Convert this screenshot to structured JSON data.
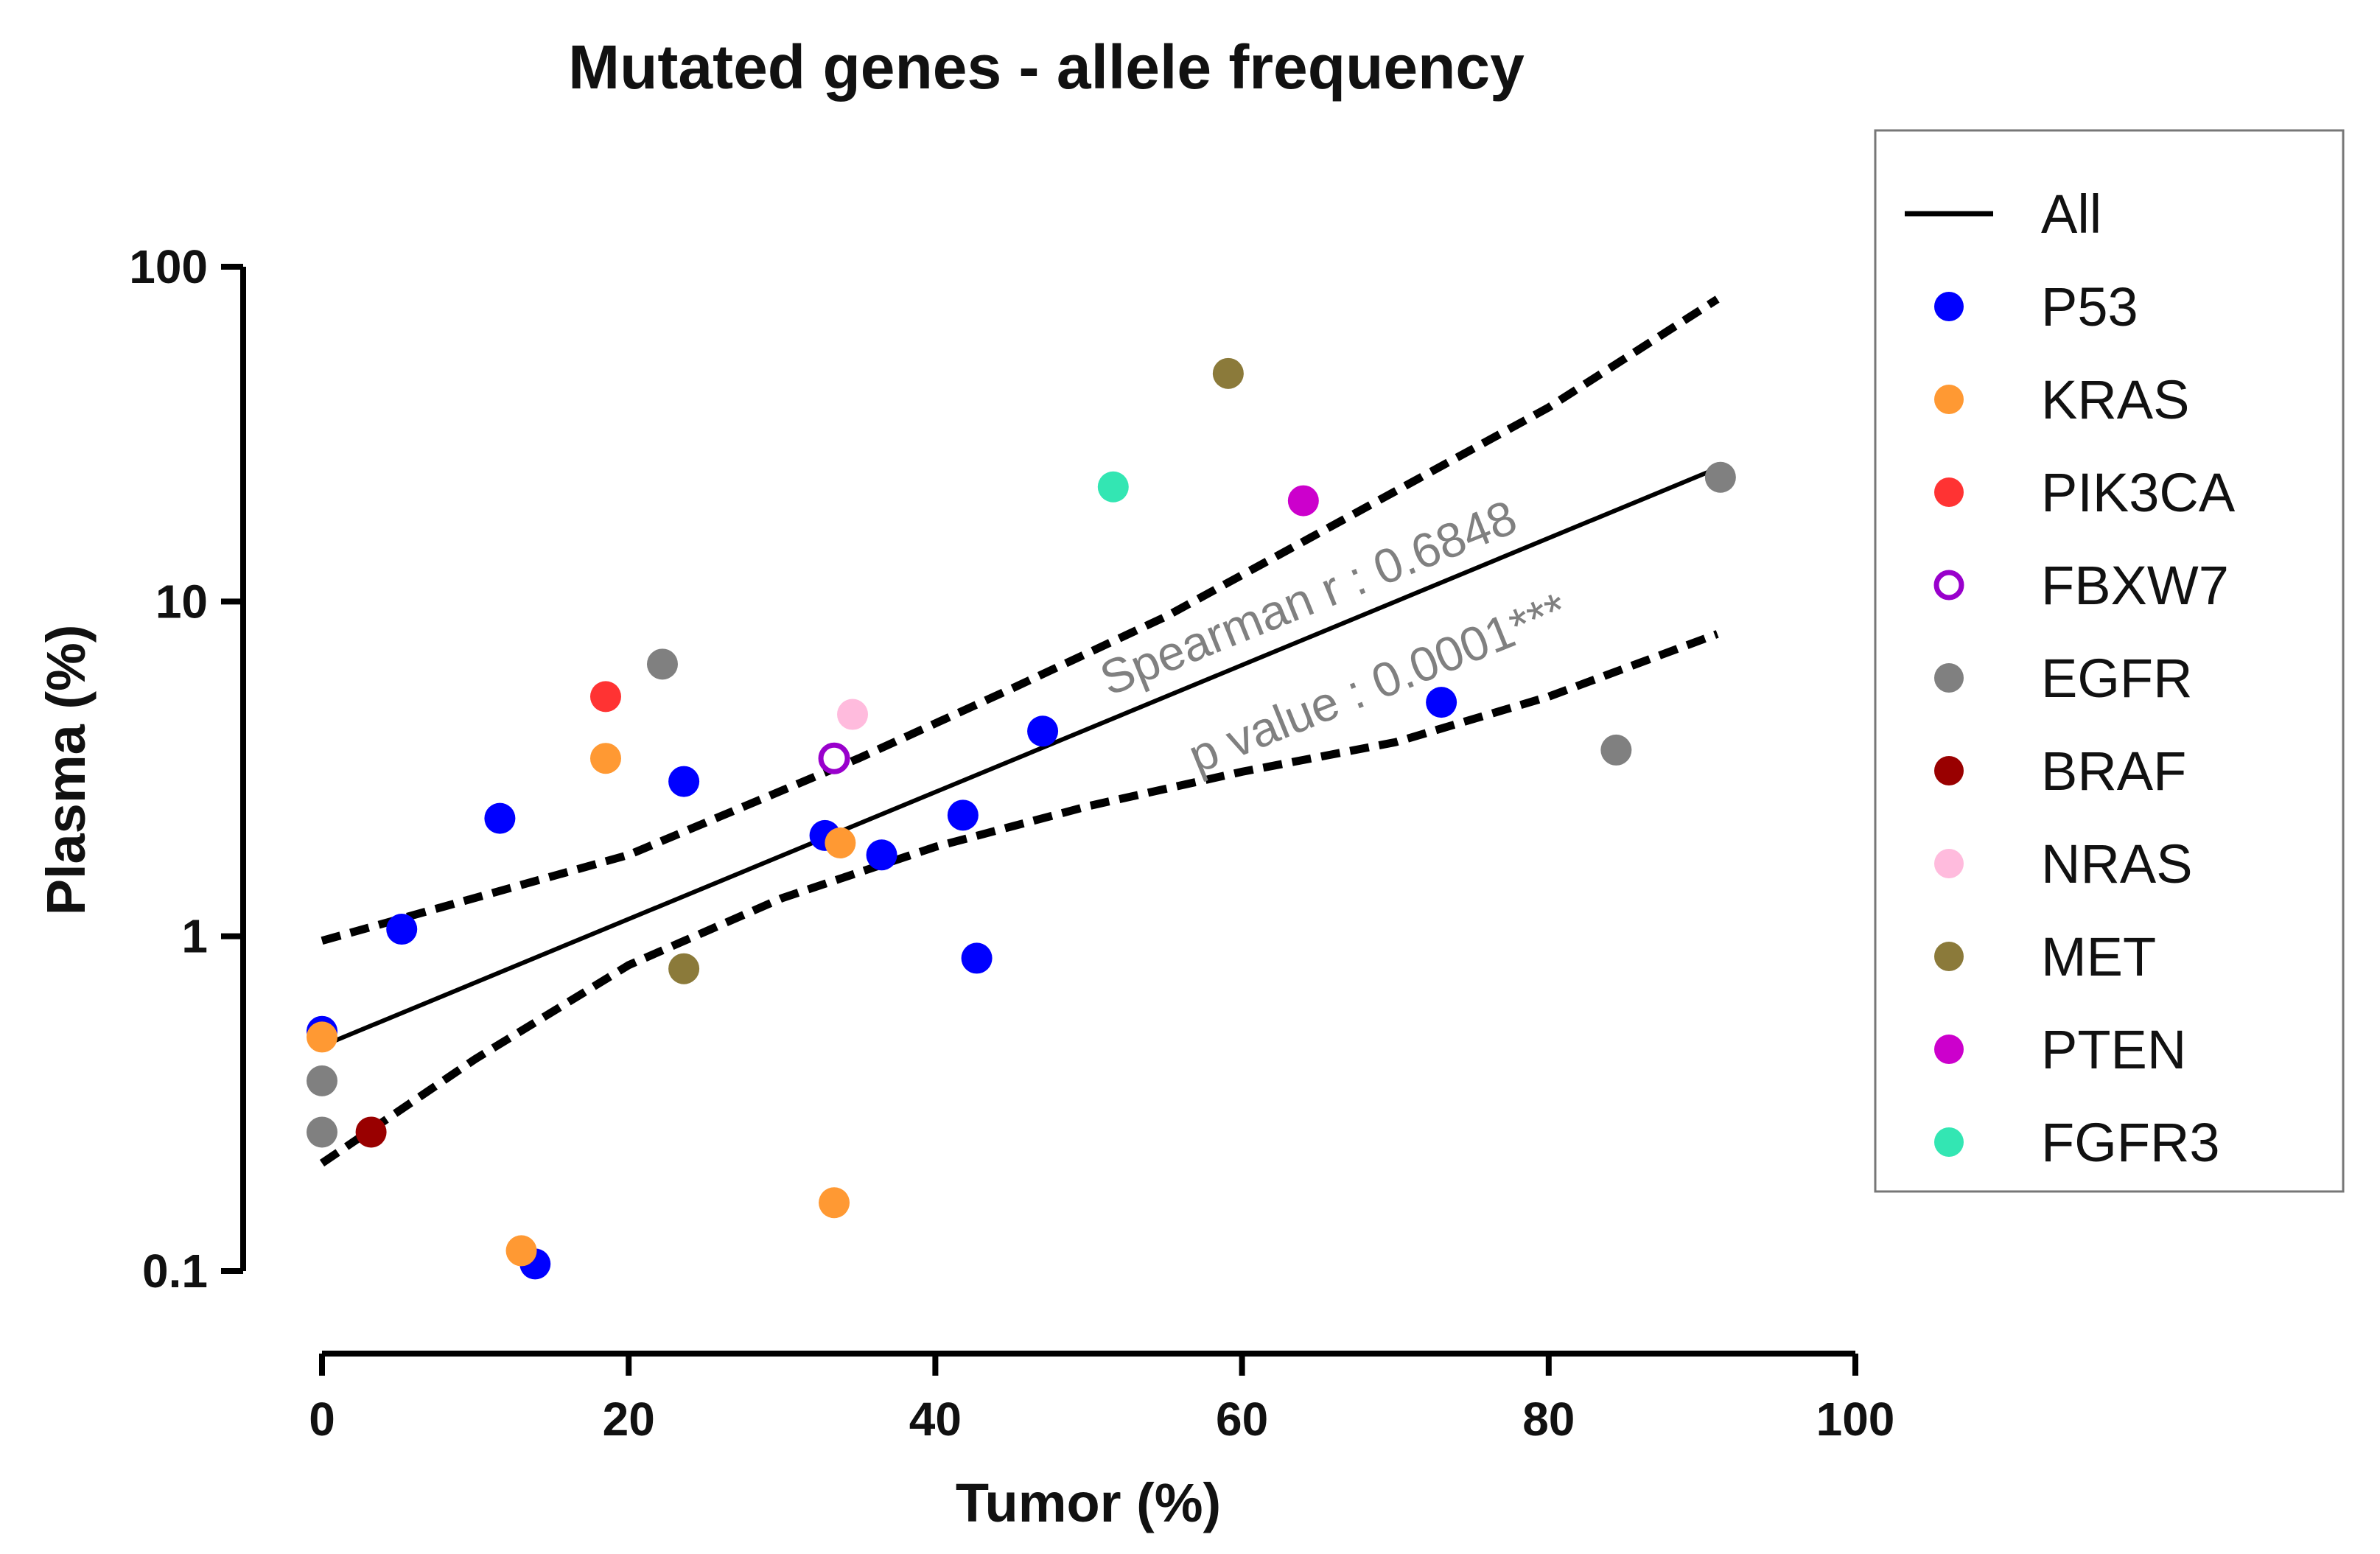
{
  "chart_data": {
    "type": "scatter",
    "title": "Mutated genes - allele frequency",
    "xlabel": "Tumor (%)",
    "ylabel": "Plasma (%)",
    "xlim": [
      0,
      100
    ],
    "ylim": [
      0.1,
      100
    ],
    "yscale": "log",
    "x_ticks": [
      "0",
      "20",
      "40",
      "60",
      "80",
      "100"
    ],
    "y_ticks": [
      "0.1",
      "1",
      "10",
      "100"
    ],
    "legend_position": "right",
    "legend_title": "All",
    "annotations": {
      "spearman": "Spearman r : 0.6848",
      "pvalue": "p value : 0.0001***"
    },
    "fit": {
      "name": "All",
      "line": [
        [
          0,
          0.47
        ],
        [
          91,
          25
        ]
      ],
      "ci_upper": [
        [
          0,
          0.97
        ],
        [
          20,
          1.75
        ],
        [
          35,
          3.4
        ],
        [
          45,
          5.5
        ],
        [
          55,
          9
        ],
        [
          65,
          16
        ],
        [
          80,
          38
        ],
        [
          91,
          80
        ]
      ],
      "ci_lower": [
        [
          0,
          0.21
        ],
        [
          10,
          0.43
        ],
        [
          20,
          0.82
        ],
        [
          30,
          1.3
        ],
        [
          40,
          1.85
        ],
        [
          50,
          2.45
        ],
        [
          60,
          3.1
        ],
        [
          70,
          3.8
        ],
        [
          80,
          5.2
        ],
        [
          91,
          8
        ]
      ]
    },
    "series": [
      {
        "name": "P53",
        "color": "#0000ff",
        "hollow": false,
        "points": [
          [
            0,
            0.52
          ],
          [
            5.2,
            1.05
          ],
          [
            11.6,
            2.25
          ],
          [
            13.9,
            0.105
          ],
          [
            23.6,
            2.9
          ],
          [
            32.8,
            2.0
          ],
          [
            36.5,
            1.75
          ],
          [
            41.8,
            2.3
          ],
          [
            42.7,
            0.86
          ],
          [
            47.0,
            4.1
          ],
          [
            73.0,
            5.0
          ]
        ]
      },
      {
        "name": "KRAS",
        "color": "#ff9933",
        "hollow": false,
        "points": [
          [
            0,
            0.5
          ],
          [
            13.0,
            0.115
          ],
          [
            18.5,
            3.4
          ],
          [
            33.4,
            0.16
          ],
          [
            33.8,
            1.9
          ]
        ]
      },
      {
        "name": "PIK3CA",
        "color": "#ff3333",
        "hollow": false,
        "points": [
          [
            18.5,
            5.2
          ]
        ]
      },
      {
        "name": "FBXW7",
        "color": "#9900cc",
        "hollow": true,
        "points": [
          [
            33.4,
            3.4
          ]
        ]
      },
      {
        "name": "EGFR",
        "color": "#808080",
        "hollow": false,
        "points": [
          [
            0,
            0.37
          ],
          [
            0,
            0.26
          ],
          [
            22.2,
            6.5
          ],
          [
            84.4,
            3.6
          ],
          [
            91.2,
            23.5
          ]
        ]
      },
      {
        "name": "BRAF",
        "color": "#990000",
        "hollow": false,
        "points": [
          [
            3.2,
            0.26
          ]
        ]
      },
      {
        "name": "NRAS",
        "color": "#ffbbdd",
        "hollow": false,
        "points": [
          [
            34.6,
            4.6
          ]
        ]
      },
      {
        "name": "MET",
        "color": "#8b7a3a",
        "hollow": false,
        "points": [
          [
            23.6,
            0.8
          ],
          [
            59.1,
            48
          ]
        ]
      },
      {
        "name": "PTEN",
        "color": "#cc00cc",
        "hollow": false,
        "points": [
          [
            64.0,
            20
          ]
        ]
      },
      {
        "name": "FGFR3",
        "color": "#33e6b3",
        "hollow": false,
        "points": [
          [
            51.6,
            22
          ]
        ]
      }
    ]
  }
}
